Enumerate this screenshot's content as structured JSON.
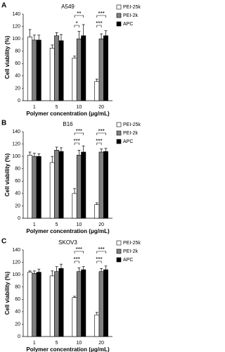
{
  "chart_data": [
    {
      "type": "bar",
      "panel": "A",
      "title": "A549",
      "x_label": "Polymer concentration (μg/mL)",
      "y_label": "Cell viability (%)",
      "categories": [
        "1",
        "5",
        "10",
        "20"
      ],
      "series": [
        {
          "name": "PEI-25k",
          "color": "#ffffff",
          "values": [
            103,
            85,
            69,
            31
          ],
          "errors": [
            12,
            5,
            3,
            4
          ]
        },
        {
          "name": "PEI-2k",
          "color": "#808080",
          "values": [
            98,
            105,
            100,
            100
          ],
          "errors": [
            8,
            5,
            12,
            8
          ]
        },
        {
          "name": "APC",
          "color": "#000000",
          "values": [
            98,
            97,
            105,
            105
          ],
          "errors": [
            8,
            10,
            18,
            8
          ]
        }
      ],
      "ylim": [
        0,
        140
      ],
      "yticks": [
        0,
        20,
        40,
        60,
        80,
        100,
        120,
        140
      ],
      "annotations": [
        "*",
        "**",
        "***",
        "***"
      ]
    },
    {
      "type": "bar",
      "panel": "B",
      "title": "B16",
      "x_label": "Polymer concentration (μg/mL)",
      "y_label": "Cell viability (%)",
      "categories": [
        "1",
        "5",
        "10",
        "20"
      ],
      "series": [
        {
          "name": "PEI-25k",
          "color": "#ffffff",
          "values": [
            102,
            90,
            40,
            22
          ],
          "errors": [
            5,
            10,
            8,
            3
          ]
        },
        {
          "name": "PEI-2k",
          "color": "#808080",
          "values": [
            100,
            110,
            102,
            107
          ],
          "errors": [
            5,
            5,
            8,
            5
          ]
        },
        {
          "name": "APC",
          "color": "#000000",
          "values": [
            100,
            108,
            107,
            108
          ],
          "errors": [
            4,
            6,
            10,
            5
          ]
        }
      ],
      "ylim": [
        0,
        140
      ],
      "yticks": [
        0,
        20,
        40,
        60,
        80,
        100,
        120,
        140
      ],
      "annotations": [
        "***",
        "***",
        "***",
        "***"
      ]
    },
    {
      "type": "bar",
      "panel": "C",
      "title": "SKOV3",
      "x_label": "Polymer concentration (μg/mL)",
      "y_label": "Cell viability (%)",
      "categories": [
        "1",
        "5",
        "10",
        "20"
      ],
      "series": [
        {
          "name": "PEI-25k",
          "color": "#ffffff",
          "values": [
            104,
            98,
            63,
            35
          ],
          "errors": [
            2,
            8,
            2,
            4
          ]
        },
        {
          "name": "PEI-2k",
          "color": "#808080",
          "values": [
            102,
            105,
            105,
            105
          ],
          "errors": [
            4,
            8,
            6,
            5
          ]
        },
        {
          "name": "APC",
          "color": "#000000",
          "values": [
            104,
            110,
            108,
            108
          ],
          "errors": [
            5,
            7,
            5,
            6
          ]
        }
      ],
      "ylim": [
        0,
        140
      ],
      "yticks": [
        0,
        20,
        40,
        60,
        80,
        100,
        120,
        140
      ],
      "annotations": [
        "***",
        "***",
        "***",
        "***"
      ]
    }
  ]
}
